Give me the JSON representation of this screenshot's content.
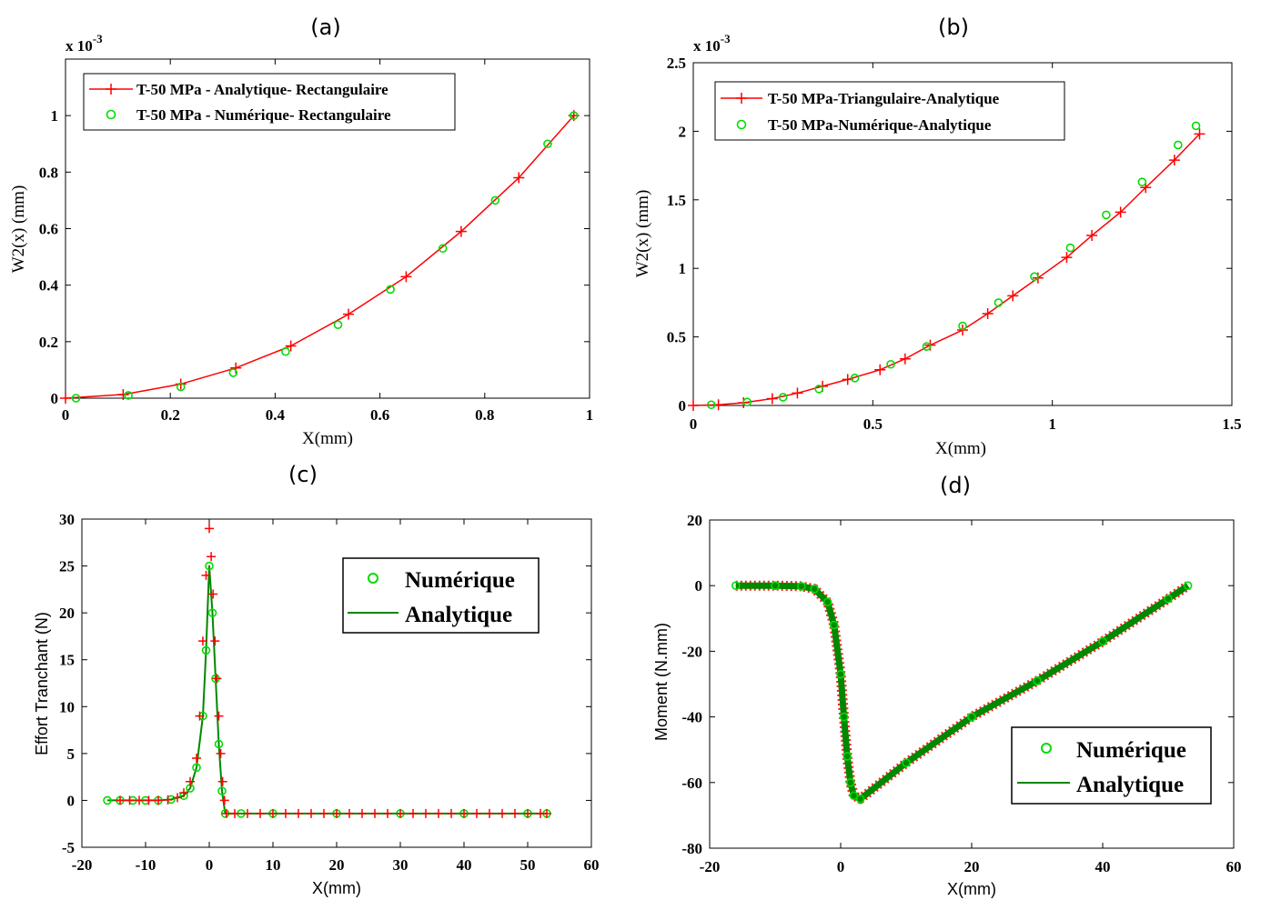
{
  "chart_data": [
    {
      "id": "a",
      "type": "line",
      "panel_label": "(a)",
      "xlabel": "X(mm)",
      "ylabel": "W2(x) (mm)",
      "exponent_label": "x 10",
      "exponent_power": "-3",
      "xlim": [
        0,
        1
      ],
      "ylim": [
        0,
        1.2
      ],
      "xticks": [
        "0",
        "0.2",
        "0.4",
        "0.6",
        "0.8",
        "1"
      ],
      "yticks": [
        "0",
        "0.2",
        "0.4",
        "0.6",
        "0.8",
        "1"
      ],
      "legend_placement": "top-left",
      "series": [
        {
          "name": "T-50 MPa - Analytique- Rectangulaire",
          "style": "line-plus",
          "color": "#ff0000",
          "x": [
            0,
            0.11,
            0.22,
            0.325,
            0.43,
            0.54,
            0.65,
            0.755,
            0.865,
            0.97
          ],
          "y": [
            0,
            0.013,
            0.05,
            0.107,
            0.185,
            0.297,
            0.43,
            0.59,
            0.78,
            1.0
          ]
        },
        {
          "name": "T-50 MPa - Numérique- Rectangulaire",
          "style": "circle",
          "color": "#00dd00",
          "x": [
            0.02,
            0.12,
            0.22,
            0.32,
            0.42,
            0.52,
            0.62,
            0.72,
            0.82,
            0.92,
            0.97
          ],
          "y": [
            0,
            0.01,
            0.04,
            0.09,
            0.165,
            0.26,
            0.385,
            0.53,
            0.7,
            0.9,
            1.0
          ]
        }
      ]
    },
    {
      "id": "b",
      "type": "line",
      "panel_label": "(b)",
      "xlabel": "X(mm)",
      "ylabel": "W2(x) (mm)",
      "exponent_label": "x 10",
      "exponent_power": "-3",
      "xlim": [
        0,
        1.5
      ],
      "ylim": [
        0,
        2.5
      ],
      "xticks": [
        "0",
        "0.5",
        "1",
        "1.5"
      ],
      "yticks": [
        "0",
        "0.5",
        "1",
        "1.5",
        "2",
        "2.5"
      ],
      "legend_placement": "top-left",
      "series": [
        {
          "name": "T-50 MPa-Triangulaire-Analytique",
          "style": "line-plus",
          "color": "#ff0000",
          "x": [
            0,
            0.07,
            0.14,
            0.22,
            0.29,
            0.36,
            0.43,
            0.52,
            0.59,
            0.66,
            0.75,
            0.82,
            0.89,
            0.96,
            1.04,
            1.11,
            1.19,
            1.26,
            1.34,
            1.41
          ],
          "y": [
            0,
            0.005,
            0.02,
            0.05,
            0.09,
            0.14,
            0.19,
            0.26,
            0.34,
            0.44,
            0.55,
            0.67,
            0.8,
            0.93,
            1.08,
            1.24,
            1.41,
            1.59,
            1.79,
            1.98
          ]
        },
        {
          "name": "T-50 MPa-Numérique-Analytique",
          "style": "circle",
          "color": "#00dd00",
          "x": [
            0.05,
            0.15,
            0.25,
            0.35,
            0.45,
            0.55,
            0.65,
            0.75,
            0.85,
            0.95,
            1.05,
            1.15,
            1.25,
            1.35,
            1.4
          ],
          "y": [
            0.005,
            0.025,
            0.06,
            0.12,
            0.2,
            0.3,
            0.43,
            0.58,
            0.75,
            0.94,
            1.15,
            1.39,
            1.63,
            1.9,
            2.04
          ]
        }
      ]
    },
    {
      "id": "c",
      "type": "line",
      "panel_label": "(c)",
      "xlabel": "X(mm)",
      "ylabel": "Effort Tranchant (N)",
      "xlim": [
        -20,
        60
      ],
      "ylim": [
        -5,
        30
      ],
      "xticks": [
        "-20",
        "-10",
        "0",
        "10",
        "20",
        "30",
        "40",
        "50",
        "60"
      ],
      "yticks": [
        "-5",
        "0",
        "5",
        "10",
        "15",
        "20",
        "25",
        "30"
      ],
      "legend_placement": "top-right",
      "series": [
        {
          "name": "Numérique",
          "style": "circle",
          "color": "#00dd00",
          "x": [
            -16,
            -14,
            -12,
            -10,
            -8,
            -6,
            -4,
            -3,
            -2,
            -1,
            -0.5,
            0,
            0.5,
            1,
            1.5,
            2,
            2.5,
            5,
            10,
            20,
            30,
            40,
            50,
            53
          ],
          "y": [
            0,
            0,
            0,
            0,
            0,
            0.1,
            0.5,
            1.3,
            3.5,
            9,
            16,
            25,
            20,
            13,
            6,
            1,
            -1.4,
            -1.4,
            -1.4,
            -1.4,
            -1.4,
            -1.4,
            -1.4,
            -1.4
          ]
        },
        {
          "name": "Analytique",
          "style": "line",
          "color": "#008800",
          "x": [
            -16,
            -14,
            -12,
            -10,
            -8,
            -6,
            -4,
            -3,
            -2,
            -1,
            -0.5,
            0,
            0.5,
            1,
            1.5,
            2,
            2.5,
            5,
            10,
            20,
            30,
            40,
            50,
            53
          ],
          "y": [
            0,
            0,
            0,
            0,
            0,
            0.1,
            0.5,
            1.3,
            3.5,
            9,
            16,
            25,
            20,
            13,
            6,
            1,
            -1.4,
            -1.4,
            -1.4,
            -1.4,
            -1.4,
            -1.4,
            -1.4,
            -1.4
          ]
        },
        {
          "name": "",
          "style": "plus",
          "color": "#ff0000",
          "x": [
            -14,
            -12.5,
            -11,
            -9.5,
            -8,
            -6.5,
            -5,
            -4,
            -3,
            -2,
            -1.5,
            -1,
            -0.5,
            0,
            0.3,
            0.6,
            0.9,
            1.2,
            1.5,
            1.8,
            2.1,
            2.4,
            2.7,
            4,
            6,
            8,
            10,
            12,
            14,
            16,
            18,
            20,
            22,
            24,
            26,
            28,
            30,
            32,
            34,
            36,
            38,
            40,
            42,
            44,
            46,
            48,
            50,
            52,
            53
          ],
          "y": [
            0,
            0,
            0,
            0,
            0,
            0.05,
            0.3,
            0.8,
            2,
            4.5,
            9,
            17,
            24,
            29,
            26,
            22,
            17,
            13,
            9,
            5,
            2,
            0,
            -1.4,
            -1.4,
            -1.4,
            -1.4,
            -1.4,
            -1.4,
            -1.4,
            -1.4,
            -1.4,
            -1.4,
            -1.4,
            -1.4,
            -1.4,
            -1.4,
            -1.4,
            -1.4,
            -1.4,
            -1.4,
            -1.4,
            -1.4,
            -1.4,
            -1.4,
            -1.4,
            -1.4,
            -1.4,
            -1.4,
            -1.4
          ]
        }
      ]
    },
    {
      "id": "d",
      "type": "line",
      "panel_label": "(d)",
      "xlabel": "X(mm)",
      "ylabel": "Moment (N.mm)",
      "xlim": [
        -20,
        60
      ],
      "ylim": [
        -80,
        20
      ],
      "xticks": [
        "-20",
        "0",
        "20",
        "40",
        "60"
      ],
      "yticks": [
        "-80",
        "-60",
        "-40",
        "-20",
        "0",
        "20"
      ],
      "legend_placement": "bottom-right",
      "series": [
        {
          "name": "Numérique",
          "style": "circle",
          "color": "#00dd00",
          "x": [
            -16,
            -10,
            -6,
            -4,
            -2,
            -1,
            0,
            0.5,
            1,
            1.5,
            2,
            3,
            10,
            20,
            30,
            40,
            50,
            53
          ],
          "y": [
            0,
            0,
            -0.2,
            -1,
            -5,
            -12,
            -27,
            -40,
            -52,
            -60,
            -64,
            -65,
            -54,
            -40,
            -29,
            -17,
            -4,
            0
          ]
        },
        {
          "name": "Analytique",
          "style": "line",
          "color": "#008800",
          "x": [
            -16,
            -10,
            -6,
            -4,
            -2,
            -1,
            0,
            0.5,
            1,
            1.5,
            2,
            3,
            10,
            20,
            30,
            40,
            50,
            53
          ],
          "y": [
            0,
            0,
            -0.2,
            -1,
            -5,
            -12,
            -27,
            -40,
            -52,
            -60,
            -64,
            -65,
            -54,
            -40,
            -29,
            -17,
            -4,
            0
          ]
        }
      ]
    }
  ]
}
